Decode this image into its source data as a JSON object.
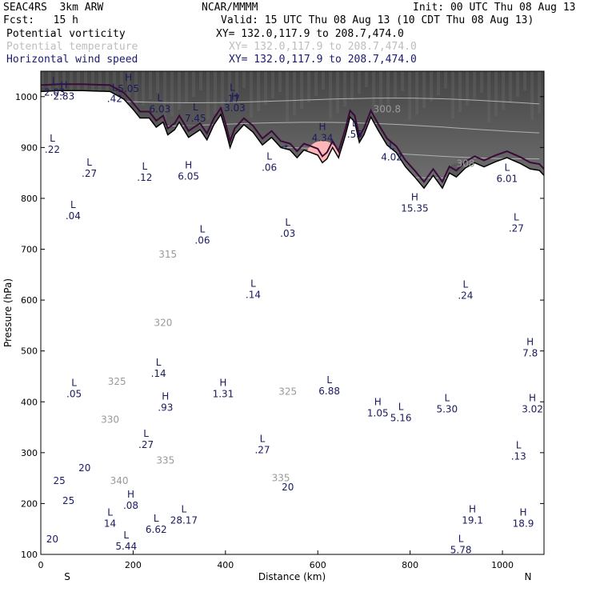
{
  "header": {
    "model": "SEAC4RS  3km ARW",
    "org": "NCAR/MMMM",
    "init": "Init: 00 UTC Thu 08 Aug 13",
    "fcst": "Fcst:   15 h",
    "valid": "Valid: 15 UTC Thu 08 Aug 13 (10 CDT Thu 08 Aug 13)",
    "fields": [
      {
        "name": "Potential vorticity",
        "xy": "XY= 132.0,117.9 to 208.7,474.0",
        "color": "#000000"
      },
      {
        "name": "Potential temperature",
        "xy": "XY= 132.0,117.9 to 208.7,474.0",
        "color": "#bdbdbd"
      },
      {
        "name": "Horizontal wind speed",
        "xy": "XY= 132.0,117.9 to 208.7,474.0",
        "color": "#1a1a6e"
      }
    ]
  },
  "chart_data": {
    "type": "cross-section",
    "xlabel": "Distance (km)",
    "ylabel": "Pressure (hPa)",
    "xlim": [
      0,
      1090
    ],
    "ylim": [
      1050,
      100
    ],
    "x_ticks": [
      0,
      200,
      400,
      600,
      800,
      1000
    ],
    "y_ticks": [
      100,
      200,
      300,
      400,
      500,
      600,
      700,
      800,
      900,
      1000
    ],
    "left_end_label": "S",
    "right_end_label": "N",
    "colors": {
      "pv_fill": "#ffb6b6",
      "shading": "#6e6e6e",
      "wind_speed": "#1a1a6e",
      "theta": "#b0b0b0",
      "pv2_contour": "#3a0a3a",
      "terrain": "#000000"
    },
    "wind_speed_contours": [
      {
        "label": "25",
        "x": 40,
        "p": 245
      },
      {
        "label": "20",
        "x": 95,
        "p": 270
      },
      {
        "label": "20",
        "x": 535,
        "p": 232
      },
      {
        "label": "25",
        "x": 60,
        "p": 205
      },
      {
        "label": "20",
        "x": 25,
        "p": 130
      }
    ],
    "theta_contours": [
      {
        "label": "340",
        "x": 170,
        "p": 245
      },
      {
        "label": "335",
        "x": 270,
        "p": 285
      },
      {
        "label": "335",
        "x": 520,
        "p": 250
      },
      {
        "label": "330",
        "x": 150,
        "p": 365
      },
      {
        "label": "325",
        "x": 165,
        "p": 440
      },
      {
        "label": "325",
        "x": 535,
        "p": 420
      },
      {
        "label": "320",
        "x": 265,
        "p": 555
      },
      {
        "label": "315",
        "x": 275,
        "p": 690
      },
      {
        "label": "308",
        "x": 920,
        "p": 868
      },
      {
        "label": "300.8",
        "x": 750,
        "p": 975
      }
    ],
    "extrema": [
      {
        "type": "L",
        "value": ".05",
        "x": 72,
        "p": 425
      },
      {
        "type": "L",
        "value": ".27",
        "x": 228,
        "p": 325
      },
      {
        "type": "L",
        "value": ".27",
        "x": 480,
        "p": 315
      },
      {
        "type": "L",
        "value": ".14",
        "x": 255,
        "p": 465
      },
      {
        "type": "H",
        "value": ".93",
        "x": 270,
        "p": 398
      },
      {
        "type": "H",
        "value": "1.31",
        "x": 395,
        "p": 425
      },
      {
        "type": "L",
        "value": "6.88",
        "x": 625,
        "p": 430
      },
      {
        "type": "H",
        "value": "1.05",
        "x": 730,
        "p": 387
      },
      {
        "type": "L",
        "value": "5.16",
        "x": 780,
        "p": 378
      },
      {
        "type": "L",
        "value": "5.30",
        "x": 880,
        "p": 395
      },
      {
        "type": "H",
        "value": "3.02",
        "x": 1065,
        "p": 395
      },
      {
        "type": "L",
        "value": ".13",
        "x": 1035,
        "p": 302
      },
      {
        "type": "H",
        "value": "7.8",
        "x": 1060,
        "p": 505
      },
      {
        "type": "L",
        "value": ".14",
        "x": 460,
        "p": 620
      },
      {
        "type": "L",
        "value": ".24",
        "x": 920,
        "p": 618
      },
      {
        "type": "L",
        "value": ".06",
        "x": 350,
        "p": 727
      },
      {
        "type": "L",
        "value": ".03",
        "x": 535,
        "p": 740
      },
      {
        "type": "L",
        "value": ".27",
        "x": 1030,
        "p": 750
      },
      {
        "type": "L",
        "value": ".04",
        "x": 70,
        "p": 775
      },
      {
        "type": "H",
        "value": "15.35",
        "x": 810,
        "p": 790
      },
      {
        "type": "L",
        "value": ".27",
        "x": 105,
        "p": 858
      },
      {
        "type": "L",
        "value": ".12",
        "x": 225,
        "p": 850
      },
      {
        "type": "H",
        "value": "6.05",
        "x": 320,
        "p": 853
      },
      {
        "type": "L",
        "value": ".06",
        "x": 495,
        "p": 870
      },
      {
        "type": "L",
        "value": "6.01",
        "x": 1010,
        "p": 848
      },
      {
        "type": "L",
        "value": ".22",
        "x": 25,
        "p": 905
      },
      {
        "type": "H",
        "value": "4.34",
        "x": 610,
        "p": 928
      },
      {
        "type": "L",
        "value": ".55",
        "x": 680,
        "p": 935
      },
      {
        "type": "L",
        "value": "4.02",
        "x": 760,
        "p": 890
      },
      {
        "type": "L",
        "value": "6.03",
        "x": 258,
        "p": 985
      },
      {
        "type": "L",
        "value": "7.45",
        "x": 335,
        "p": 967
      },
      {
        "type": "H",
        "value": "3.03",
        "x": 420,
        "p": 987
      },
      {
        "type": "L",
        "value": ".17",
        "x": 415,
        "p": 1005
      },
      {
        "type": "L",
        "value": ".42",
        "x": 160,
        "p": 1005
      },
      {
        "type": "H",
        "value": "5.05",
        "x": 190,
        "p": 1025
      },
      {
        "type": "H",
        "value": "2.83",
        "x": 50,
        "p": 1010
      },
      {
        "type": "L",
        "value": "2.03",
        "x": 30,
        "p": 1018
      },
      {
        "type": "H",
        "value": ".08",
        "x": 195,
        "p": 205
      },
      {
        "type": "L",
        "value": "5.44",
        "x": 185,
        "p": 125
      },
      {
        "type": "L",
        "value": "14",
        "x": 150,
        "p": 170
      },
      {
        "type": "L",
        "value": "6.62",
        "x": 250,
        "p": 158
      },
      {
        "type": "L",
        "value": "28.17",
        "x": 310,
        "p": 176
      },
      {
        "type": "H",
        "value": "19.1",
        "x": 935,
        "p": 176
      },
      {
        "type": "L",
        "value": "5.78",
        "x": 910,
        "p": 118
      },
      {
        "type": "H",
        "value": "18.9",
        "x": 1045,
        "p": 170
      }
    ],
    "terrain": [
      [
        0,
        1010
      ],
      [
        40,
        1012
      ],
      [
        90,
        1012
      ],
      [
        150,
        1010
      ],
      [
        180,
        995
      ],
      [
        200,
        975
      ],
      [
        215,
        958
      ],
      [
        235,
        958
      ],
      [
        250,
        940
      ],
      [
        265,
        950
      ],
      [
        275,
        925
      ],
      [
        290,
        935
      ],
      [
        300,
        950
      ],
      [
        320,
        920
      ],
      [
        345,
        935
      ],
      [
        360,
        915
      ],
      [
        375,
        945
      ],
      [
        390,
        965
      ],
      [
        400,
        935
      ],
      [
        410,
        900
      ],
      [
        420,
        925
      ],
      [
        440,
        945
      ],
      [
        460,
        930
      ],
      [
        480,
        905
      ],
      [
        500,
        920
      ],
      [
        520,
        900
      ],
      [
        540,
        895
      ],
      [
        555,
        880
      ],
      [
        570,
        895
      ],
      [
        585,
        890
      ],
      [
        600,
        885
      ],
      [
        610,
        870
      ],
      [
        620,
        878
      ],
      [
        632,
        900
      ],
      [
        645,
        880
      ],
      [
        660,
        925
      ],
      [
        670,
        960
      ],
      [
        680,
        950
      ],
      [
        690,
        910
      ],
      [
        700,
        925
      ],
      [
        715,
        960
      ],
      [
        730,
        935
      ],
      [
        750,
        905
      ],
      [
        770,
        890
      ],
      [
        790,
        862
      ],
      [
        810,
        842
      ],
      [
        830,
        820
      ],
      [
        850,
        845
      ],
      [
        870,
        820
      ],
      [
        885,
        850
      ],
      [
        900,
        842
      ],
      [
        920,
        860
      ],
      [
        940,
        870
      ],
      [
        960,
        862
      ],
      [
        985,
        872
      ],
      [
        1010,
        880
      ],
      [
        1040,
        868
      ],
      [
        1060,
        858
      ],
      [
        1080,
        855
      ],
      [
        1090,
        845
      ]
    ],
    "pv2_contour": [
      [
        0,
        243
      ],
      [
        60,
        238
      ],
      [
        120,
        235
      ],
      [
        200,
        232
      ],
      [
        260,
        235
      ],
      [
        330,
        238
      ],
      [
        400,
        233
      ],
      [
        450,
        232
      ],
      [
        500,
        225
      ],
      [
        560,
        237
      ],
      [
        620,
        237
      ],
      [
        680,
        232
      ],
      [
        720,
        236
      ],
      [
        760,
        236
      ],
      [
        800,
        230
      ],
      [
        860,
        233
      ],
      [
        920,
        232
      ],
      [
        980,
        236
      ],
      [
        1040,
        236
      ],
      [
        1090,
        228
      ]
    ],
    "wind_field": {
      "levels": [
        1000,
        950,
        900,
        850,
        800,
        750,
        700,
        650,
        600,
        550,
        500,
        450,
        400,
        350,
        300,
        250,
        200,
        150,
        125
      ],
      "x_spacing_km": 25
    }
  }
}
